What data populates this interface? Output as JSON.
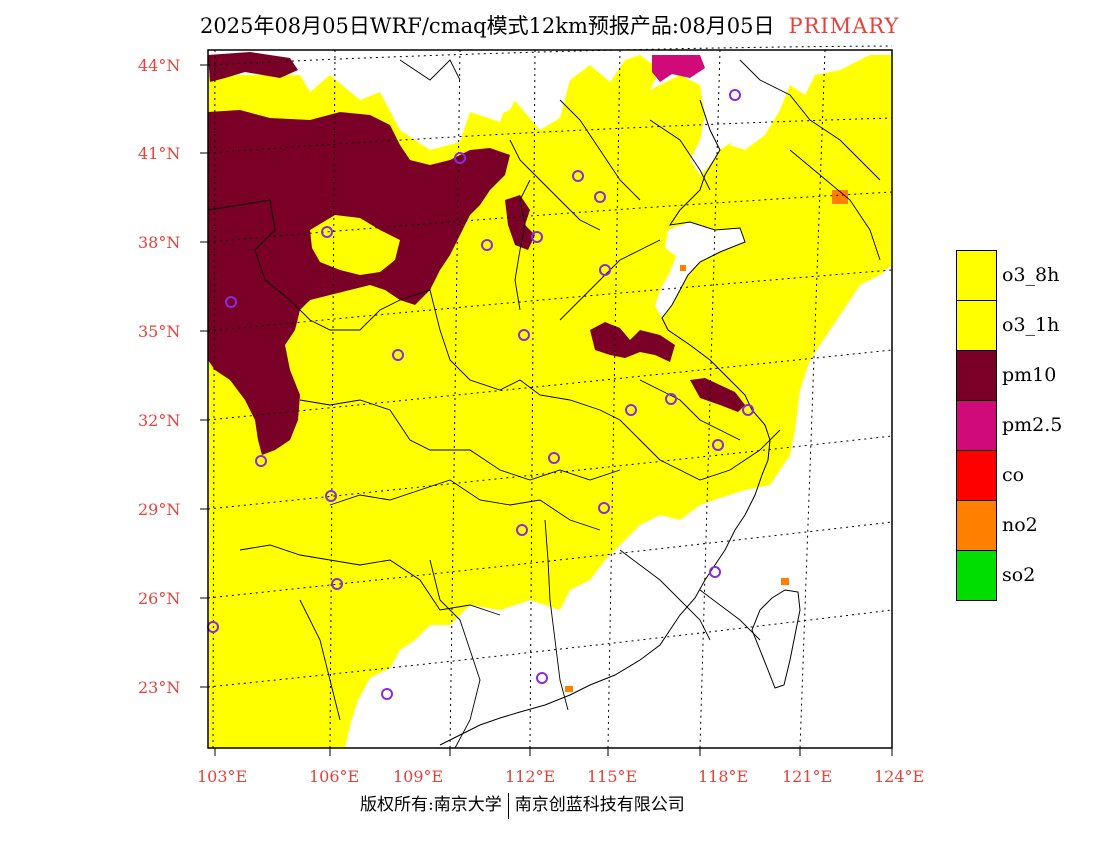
{
  "title": {
    "main": "2025年08月05日WRF/cmaq模式12km预报产品:08月05日",
    "flag": "PRIMARY"
  },
  "axes": {
    "lat_labels": [
      "44°N",
      "41°N",
      "38°N",
      "35°N",
      "32°N",
      "29°N",
      "26°N",
      "23°N"
    ],
    "lon_labels": [
      "103°E",
      "106°E",
      "109°E",
      "112°E",
      "115°E",
      "118°E",
      "121°E",
      "124°E"
    ]
  },
  "legend": {
    "items": [
      {
        "label": "o3_8h",
        "color": "#ffff00"
      },
      {
        "label": "o3_1h",
        "color": "#ffff00"
      },
      {
        "label": "pm10",
        "color": "#7a0028"
      },
      {
        "label": "pm2.5",
        "color": "#d00a78"
      },
      {
        "label": "co",
        "color": "#ff0000"
      },
      {
        "label": "no2",
        "color": "#ff7f00"
      },
      {
        "label": "so2",
        "color": "#00dd00"
      }
    ]
  },
  "colors": {
    "o3": "#ffff00",
    "pm10": "#7a0028",
    "pm25": "#d00a78",
    "no2": "#ff7f00",
    "station": "#8a2be2",
    "label": "#e8413a"
  },
  "footer": {
    "copyright": "版权所有:南京大学",
    "company": "南京创蓝科技有限公司"
  }
}
